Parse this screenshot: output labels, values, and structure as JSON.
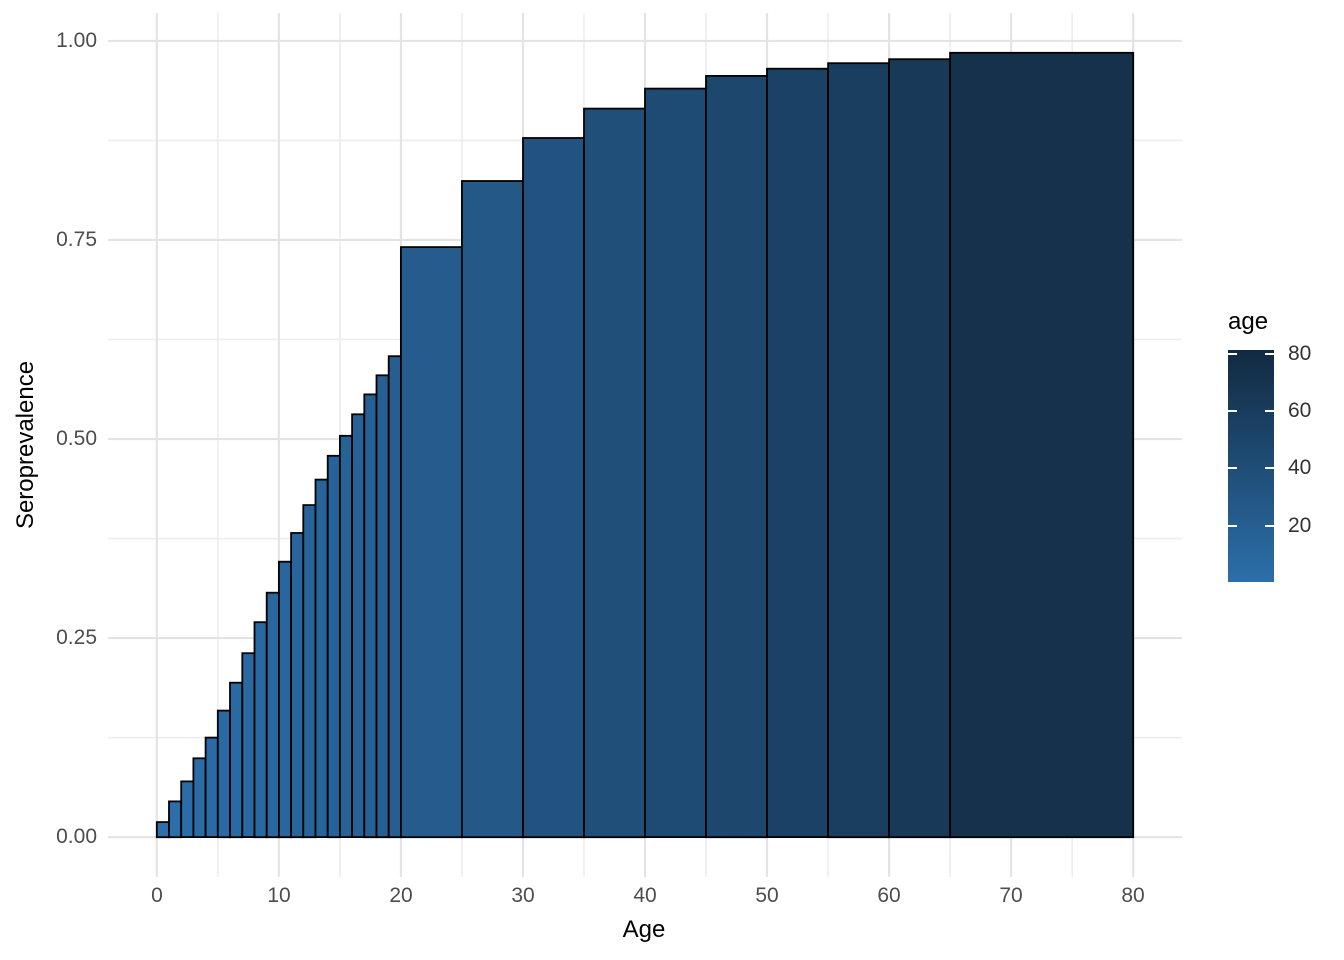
{
  "figure": {
    "background_color": "#ffffff",
    "axis_text_color": "#4d4d4d",
    "title_color": "#000000",
    "grid_major_color": "#e3e3e3",
    "grid_minor_color": "#ededed",
    "bar_stroke_color": "#000000",
    "gradient_low_color": "#2c6fab",
    "gradient_high_color": "#122a40",
    "legend_tick_color": "#ffffff",
    "legend_text_color": "#333333"
  },
  "chart_data": {
    "type": "bar",
    "title": "",
    "xlabel": "Age",
    "ylabel": "Seroprevalence",
    "xlim": [
      -4,
      84
    ],
    "ylim": [
      -0.05,
      1.035
    ],
    "grid": true,
    "x_ticks": [
      0,
      10,
      20,
      30,
      40,
      50,
      60,
      70,
      80
    ],
    "x_minor_ticks": [
      5,
      15,
      25,
      35,
      45,
      55,
      65,
      75
    ],
    "y_ticks": [
      {
        "value": 0.0,
        "label": "0.00"
      },
      {
        "value": 0.25,
        "label": "0.25"
      },
      {
        "value": 0.5,
        "label": "0.50"
      },
      {
        "value": 0.75,
        "label": "0.75"
      },
      {
        "value": 1.0,
        "label": "1.00"
      }
    ],
    "y_minor_ticks": [
      0.125,
      0.375,
      0.625,
      0.875
    ],
    "bars": [
      {
        "age_start": 0,
        "age_end": 1,
        "seroprevalence": 0.019
      },
      {
        "age_start": 1,
        "age_end": 2,
        "seroprevalence": 0.045
      },
      {
        "age_start": 2,
        "age_end": 3,
        "seroprevalence": 0.07
      },
      {
        "age_start": 3,
        "age_end": 4,
        "seroprevalence": 0.099
      },
      {
        "age_start": 4,
        "age_end": 5,
        "seroprevalence": 0.125
      },
      {
        "age_start": 5,
        "age_end": 6,
        "seroprevalence": 0.159
      },
      {
        "age_start": 6,
        "age_end": 7,
        "seroprevalence": 0.194
      },
      {
        "age_start": 7,
        "age_end": 8,
        "seroprevalence": 0.231
      },
      {
        "age_start": 8,
        "age_end": 9,
        "seroprevalence": 0.27
      },
      {
        "age_start": 9,
        "age_end": 10,
        "seroprevalence": 0.307
      },
      {
        "age_start": 10,
        "age_end": 11,
        "seroprevalence": 0.346
      },
      {
        "age_start": 11,
        "age_end": 12,
        "seroprevalence": 0.382
      },
      {
        "age_start": 12,
        "age_end": 13,
        "seroprevalence": 0.417
      },
      {
        "age_start": 13,
        "age_end": 14,
        "seroprevalence": 0.449
      },
      {
        "age_start": 14,
        "age_end": 15,
        "seroprevalence": 0.479
      },
      {
        "age_start": 15,
        "age_end": 16,
        "seroprevalence": 0.504
      },
      {
        "age_start": 16,
        "age_end": 17,
        "seroprevalence": 0.531
      },
      {
        "age_start": 17,
        "age_end": 18,
        "seroprevalence": 0.556
      },
      {
        "age_start": 18,
        "age_end": 19,
        "seroprevalence": 0.58
      },
      {
        "age_start": 19,
        "age_end": 20,
        "seroprevalence": 0.604
      },
      {
        "age_start": 20,
        "age_end": 25,
        "seroprevalence": 0.741
      },
      {
        "age_start": 25,
        "age_end": 30,
        "seroprevalence": 0.824
      },
      {
        "age_start": 30,
        "age_end": 35,
        "seroprevalence": 0.878
      },
      {
        "age_start": 35,
        "age_end": 40,
        "seroprevalence": 0.915
      },
      {
        "age_start": 40,
        "age_end": 45,
        "seroprevalence": 0.94
      },
      {
        "age_start": 45,
        "age_end": 50,
        "seroprevalence": 0.956
      },
      {
        "age_start": 50,
        "age_end": 55,
        "seroprevalence": 0.965
      },
      {
        "age_start": 55,
        "age_end": 60,
        "seroprevalence": 0.972
      },
      {
        "age_start": 60,
        "age_end": 65,
        "seroprevalence": 0.977
      },
      {
        "age_start": 65,
        "age_end": 80,
        "seroprevalence": 0.985
      }
    ],
    "legend": {
      "title": "age",
      "position": "right",
      "ticks": [
        80,
        60,
        40,
        20
      ],
      "domain": [
        0,
        81
      ]
    }
  }
}
